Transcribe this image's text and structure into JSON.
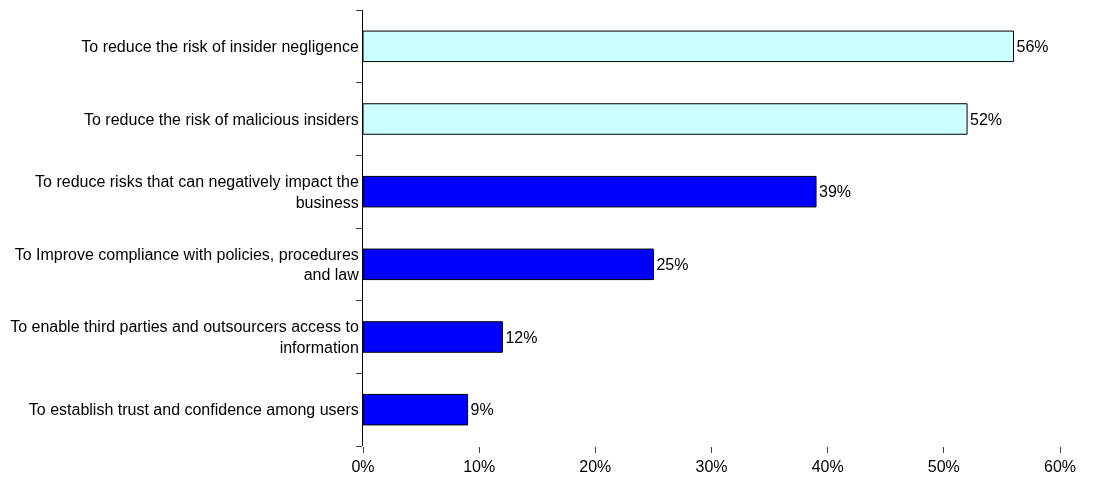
{
  "chart_data": {
    "type": "bar",
    "orientation": "horizontal",
    "categories": [
      "To reduce the risk of insider negligence",
      "To reduce the risk of malicious insiders",
      "To reduce risks that can negatively impact the business",
      "To Improve compliance with policies, procedures and law",
      "To enable third parties and outsourcers access to information",
      "To establish trust and confidence among users"
    ],
    "values": [
      56,
      52,
      39,
      25,
      12,
      9
    ],
    "colors": [
      "#ccffff",
      "#ccffff",
      "#0000ff",
      "#0000ff",
      "#0000ff",
      "#0000ff"
    ],
    "value_labels": [
      "56%",
      "52%",
      "39%",
      "25%",
      "12%",
      "9%"
    ],
    "xlim": [
      0,
      60
    ],
    "xticks": [
      {
        "value": 0,
        "label": "0%"
      },
      {
        "value": 10,
        "label": "10%"
      },
      {
        "value": 20,
        "label": "20%"
      },
      {
        "value": 30,
        "label": "30%"
      },
      {
        "value": 40,
        "label": "40%"
      },
      {
        "value": 50,
        "label": "50%"
      },
      {
        "value": 60,
        "label": "60%"
      }
    ],
    "grid": false
  }
}
